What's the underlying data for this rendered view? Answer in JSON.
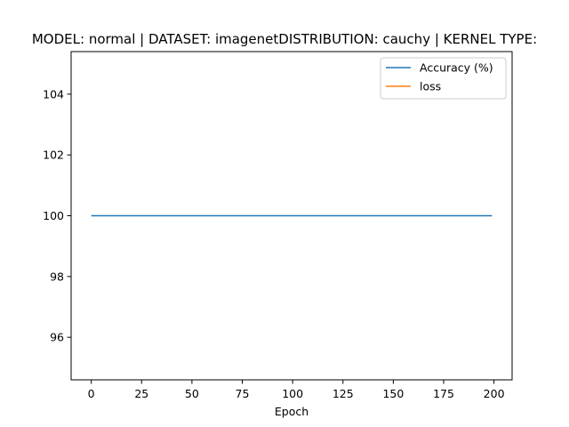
{
  "chart_data": {
    "type": "line",
    "title": "MODEL: normal | DATASET: imagenetDISTRIBUTION: cauchy | KERNEL TYPE:",
    "xlabel": "Epoch",
    "ylabel": "",
    "xlim": [
      -10,
      209
    ],
    "ylim": [
      94.6,
      105.4
    ],
    "xticks": [
      0,
      25,
      50,
      75,
      100,
      125,
      150,
      175,
      200
    ],
    "yticks": [
      96,
      98,
      100,
      102,
      104
    ],
    "grid": false,
    "legend_position": "top-right",
    "series": [
      {
        "name": "Accuracy (%)",
        "color": "#1f77b4",
        "x": [
          0,
          199
        ],
        "y": [
          100,
          100
        ]
      },
      {
        "name": "loss",
        "color": "#ff7f0e",
        "x": [],
        "y": []
      }
    ]
  }
}
